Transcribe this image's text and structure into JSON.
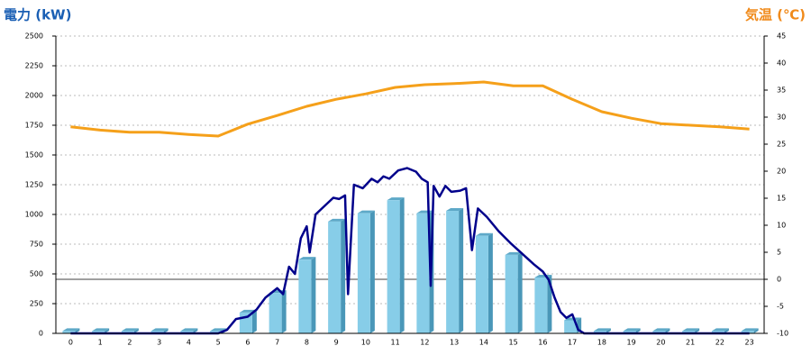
{
  "chart_data": {
    "type": "bar",
    "y_label": "電力 (kW)",
    "y2_label": "気温 (℃)",
    "categories": [
      "0",
      "1",
      "2",
      "3",
      "4",
      "5",
      "6",
      "7",
      "8",
      "9",
      "10",
      "11",
      "12",
      "13",
      "14",
      "15",
      "16",
      "17",
      "18",
      "19",
      "20",
      "21",
      "22",
      "23"
    ],
    "ylim": [
      0,
      2500
    ],
    "yticks": [
      0,
      250,
      500,
      750,
      1000,
      1250,
      1500,
      1750,
      2000,
      2250,
      2500
    ],
    "y2lim": [
      -10,
      45
    ],
    "y2ticks": [
      -10,
      -5,
      0,
      5,
      10,
      15,
      20,
      25,
      30,
      35,
      40,
      45
    ],
    "grid": true,
    "y2_zero_line": true,
    "series": [
      {
        "type": "bar",
        "color": "#87cde8",
        "values": [
          20,
          20,
          20,
          20,
          20,
          20,
          175,
          340,
          620,
          940,
          1010,
          1120,
          1010,
          1030,
          820,
          660,
          470,
          110,
          20,
          20,
          20,
          20,
          20,
          20
        ]
      },
      {
        "type": "line",
        "color": "#00008b",
        "x": [
          0,
          5,
          5.3,
          5.6,
          6,
          6.3,
          6.6,
          7,
          7.2,
          7.4,
          7.6,
          7.8,
          8,
          8.1,
          8.3,
          8.6,
          8.9,
          9.1,
          9.3,
          9.4,
          9.5,
          9.6,
          9.9,
          10.2,
          10.4,
          10.6,
          10.8,
          11.1,
          11.4,
          11.7,
          11.9,
          12.1,
          12.2,
          12.3,
          12.5,
          12.7,
          12.9,
          13.2,
          13.4,
          13.6,
          13.8,
          14.1,
          14.5,
          14.9,
          15.3,
          15.7,
          16,
          16.2,
          16.4,
          16.6,
          16.8,
          17,
          17.2,
          17.4,
          23
        ],
        "values": [
          0,
          0,
          30,
          120,
          140,
          200,
          300,
          380,
          330,
          560,
          500,
          800,
          900,
          680,
          1000,
          1070,
          1140,
          1130,
          1160,
          330,
          800,
          1250,
          1220,
          1300,
          1270,
          1320,
          1300,
          1370,
          1390,
          1360,
          1300,
          1270,
          400,
          1240,
          1150,
          1240,
          1190,
          1200,
          1220,
          700,
          1050,
          980,
          860,
          760,
          670,
          580,
          520,
          450,
          300,
          180,
          130,
          160,
          30,
          0,
          0
        ]
      },
      {
        "type": "line",
        "axis": "y2",
        "color": "#f5a01a",
        "values": [
          28.2,
          27.6,
          27.2,
          27.2,
          26.8,
          26.5,
          28.7,
          30.3,
          32,
          33.3,
          34.3,
          35.5,
          36,
          36.2,
          36.5,
          35.8,
          35.8,
          33.3,
          31,
          29.8,
          28.8,
          28.5,
          28.2,
          27.8
        ]
      }
    ]
  }
}
